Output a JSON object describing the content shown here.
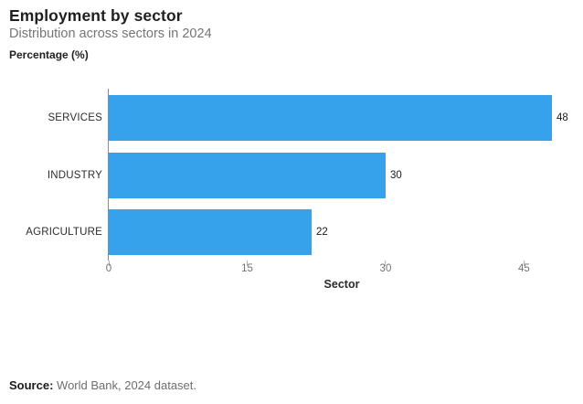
{
  "header": {
    "title": "Employment by sector",
    "subtitle": "Distribution across sectors in 2024",
    "value_axis_title": "Percentage (%)"
  },
  "chart_data": {
    "type": "bar",
    "orientation": "horizontal",
    "title": "Employment by sector",
    "subtitle": "Distribution across sectors in 2024",
    "categories": [
      "SERVICES",
      "INDUSTRY",
      "AGRICULTURE"
    ],
    "values": [
      48,
      30,
      22
    ],
    "xlabel": "Sector",
    "ylabel": "Percentage (%)",
    "xticks": [
      0,
      15,
      30,
      45
    ],
    "xlim": [
      0,
      50.7
    ],
    "grid": false,
    "legend": false,
    "bar_color": "#36a2eb",
    "axis_line_color": "#8c8c8c"
  },
  "footer": {
    "source_label": "Source:",
    "source_text": "World Bank, 2024 dataset."
  }
}
